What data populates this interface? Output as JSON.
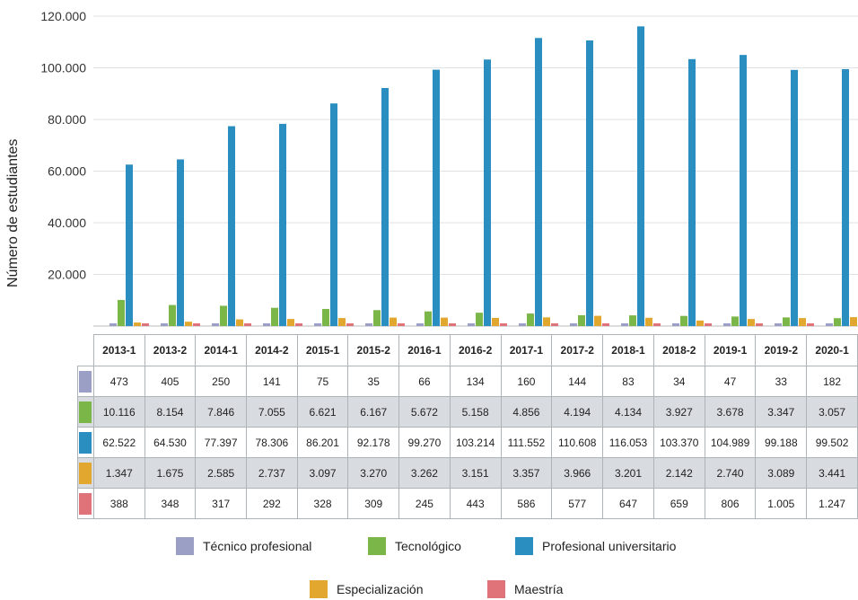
{
  "chart_data": {
    "type": "bar",
    "ylabel": "Número de estudiantes",
    "ylim": [
      0,
      120000
    ],
    "yticks": [
      "120.000",
      "100.000",
      "80.000",
      "60.000",
      "40.000",
      "20.000"
    ],
    "categories": [
      "2013-1",
      "2013-2",
      "2014-1",
      "2014-2",
      "2015-1",
      "2015-2",
      "2016-1",
      "2016-2",
      "2017-1",
      "2017-2",
      "2018-1",
      "2018-2",
      "2019-1",
      "2019-2",
      "2020-1"
    ],
    "series": [
      {
        "name": "Técnico profesional",
        "color": "#9b9fc6",
        "values": [
          473,
          405,
          250,
          141,
          75,
          35,
          66,
          134,
          160,
          144,
          83,
          34,
          47,
          33,
          182
        ],
        "labels": [
          "473",
          "405",
          "250",
          "141",
          "75",
          "35",
          "66",
          "134",
          "160",
          "144",
          "83",
          "34",
          "47",
          "33",
          "182"
        ]
      },
      {
        "name": "Tecnológico",
        "color": "#7ab648",
        "values": [
          10116,
          8154,
          7846,
          7055,
          6621,
          6167,
          5672,
          5158,
          4856,
          4194,
          4134,
          3927,
          3678,
          3347,
          3057
        ],
        "labels": [
          "10.116",
          "8.154",
          "7.846",
          "7.055",
          "6.621",
          "6.167",
          "5.672",
          "5.158",
          "4.856",
          "4.194",
          "4.134",
          "3.927",
          "3.678",
          "3.347",
          "3.057"
        ]
      },
      {
        "name": "Profesional universitario",
        "color": "#2a8fc0",
        "values": [
          62522,
          64530,
          77397,
          78306,
          86201,
          92178,
          99270,
          103214,
          111552,
          110608,
          116053,
          103370,
          104989,
          99188,
          99502
        ],
        "labels": [
          "62.522",
          "64.530",
          "77.397",
          "78.306",
          "86.201",
          "92.178",
          "99.270",
          "103.214",
          "111.552",
          "110.608",
          "116.053",
          "103.370",
          "104.989",
          "99.188",
          "99.502"
        ]
      },
      {
        "name": "Especialización",
        "color": "#e2a72e",
        "values": [
          1347,
          1675,
          2585,
          2737,
          3097,
          3270,
          3262,
          3151,
          3357,
          3966,
          3201,
          2142,
          2740,
          3089,
          3441
        ],
        "labels": [
          "1.347",
          "1.675",
          "2.585",
          "2.737",
          "3.097",
          "3.270",
          "3.262",
          "3.151",
          "3.357",
          "3.966",
          "3.201",
          "2.142",
          "2.740",
          "3.089",
          "3.441"
        ]
      },
      {
        "name": "Maestría",
        "color": "#e0727a",
        "values": [
          388,
          348,
          317,
          292,
          328,
          309,
          245,
          443,
          586,
          577,
          647,
          659,
          806,
          1005,
          1247
        ],
        "labels": [
          "388",
          "348",
          "317",
          "292",
          "328",
          "309",
          "245",
          "443",
          "586",
          "577",
          "647",
          "659",
          "806",
          "1.005",
          "1.247"
        ]
      }
    ]
  }
}
